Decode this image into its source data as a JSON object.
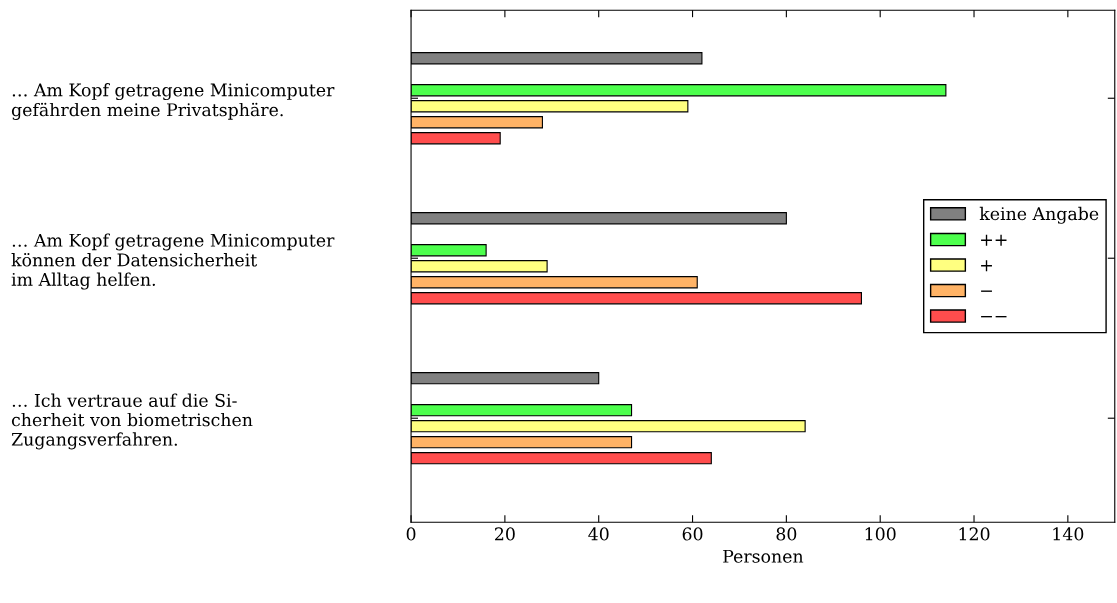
{
  "chart_data": {
    "type": "bar",
    "orientation": "horizontal",
    "categories": [
      "… Am Kopf getragene Minicomputer\ngefährden meine Privatsphäre.",
      "… Am Kopf getragene Minicomputer\nkönnen der Datensicherheit\nim Alltag helfen.",
      "… Ich vertraue auf die Si-\ncherheit von biometrischen\nZugangsverfahren."
    ],
    "series": [
      {
        "name": "keine Angabe",
        "color": "#808080",
        "values": [
          62,
          80,
          40
        ]
      },
      {
        "name": "++",
        "color": "#4dff4d",
        "values": [
          114,
          16,
          47
        ]
      },
      {
        "name": "+",
        "color": "#ffff80",
        "values": [
          59,
          29,
          84
        ]
      },
      {
        "name": "−",
        "color": "#ffb366",
        "values": [
          28,
          61,
          47
        ]
      },
      {
        "name": "−−",
        "color": "#ff4d4d",
        "values": [
          19,
          96,
          64
        ]
      }
    ],
    "xlabel": "Personen",
    "xlim": [
      0,
      150
    ],
    "xticks": [
      0,
      20,
      40,
      60,
      80,
      100,
      120,
      140
    ],
    "legend": "right",
    "grid": false
  }
}
